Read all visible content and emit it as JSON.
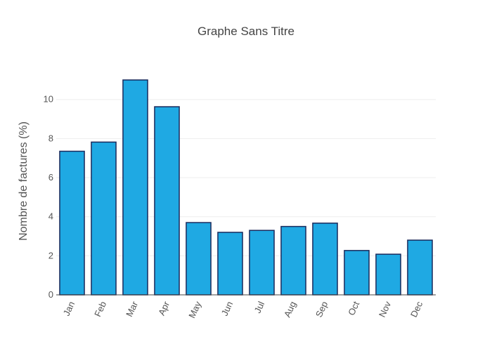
{
  "chart_data": {
    "type": "bar",
    "title": "Graphe Sans Titre",
    "xlabel": "",
    "ylabel": "Nombre de factures (%)",
    "categories": [
      "Jan",
      "Feb",
      "Mar",
      "Apr",
      "May",
      "Jun",
      "Jul",
      "Aug",
      "Sep",
      "Oct",
      "Nov",
      "Dec"
    ],
    "values": [
      7.35,
      7.82,
      11.0,
      9.63,
      3.7,
      3.2,
      3.3,
      3.5,
      3.67,
      2.27,
      2.08,
      2.8
    ],
    "ylim": [
      0,
      11.5
    ],
    "yticks": [
      0,
      2,
      4,
      6,
      8,
      10
    ],
    "grid": true,
    "legend": "none",
    "bar_color": "#1fa9e3",
    "bar_edge_color": "#1a2a5c"
  }
}
